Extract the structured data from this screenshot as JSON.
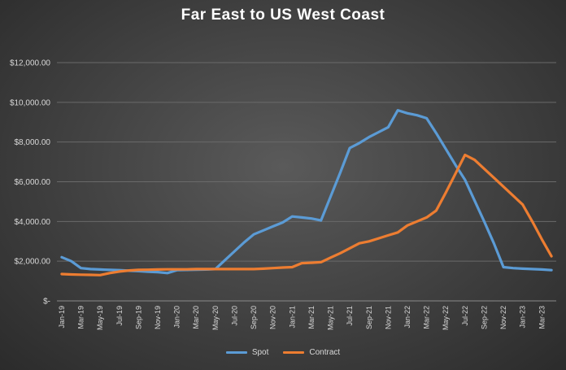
{
  "chart_data": {
    "type": "line",
    "title": "Far East to US West Coast",
    "xlabel": "",
    "ylabel": "",
    "ylim": [
      0,
      12000
    ],
    "y_ticks": [
      "$-",
      "$2,000.00",
      "$4,000.00",
      "$6,000.00",
      "$8,000.00",
      "$10,000.00",
      "$12,000.00"
    ],
    "grid": true,
    "legend_position": "bottom",
    "x_tick_labels": [
      "Jan-19",
      "Mar-19",
      "May-19",
      "Jul-19",
      "Sep-19",
      "Nov-19",
      "Jan-20",
      "Mar-20",
      "May-20",
      "Jul-20",
      "Sep-20",
      "Nov-20",
      "Jan-21",
      "Mar-21",
      "May-21",
      "Jul-21",
      "Sep-21",
      "Nov-21",
      "Jan-22",
      "Mar-22",
      "May-22",
      "Jul-22",
      "Sep-22",
      "Nov-22",
      "Jan-23",
      "Mar-23"
    ],
    "x": [
      "Jan-19",
      "Feb-19",
      "Mar-19",
      "Apr-19",
      "May-19",
      "Jun-19",
      "Jul-19",
      "Aug-19",
      "Sep-19",
      "Oct-19",
      "Nov-19",
      "Dec-19",
      "Jan-20",
      "Feb-20",
      "Mar-20",
      "Apr-20",
      "May-20",
      "Jun-20",
      "Jul-20",
      "Aug-20",
      "Sep-20",
      "Oct-20",
      "Nov-20",
      "Dec-20",
      "Jan-21",
      "Feb-21",
      "Mar-21",
      "Apr-21",
      "May-21",
      "Jun-21",
      "Jul-21",
      "Aug-21",
      "Sep-21",
      "Oct-21",
      "Nov-21",
      "Dec-21",
      "Jan-22",
      "Feb-22",
      "Mar-22",
      "Apr-22",
      "May-22",
      "Jun-22",
      "Jul-22",
      "Aug-22",
      "Sep-22",
      "Oct-22",
      "Nov-22",
      "Dec-22",
      "Jan-23",
      "Feb-23",
      "Mar-23",
      "Apr-23"
    ],
    "series": [
      {
        "name": "Spot",
        "color": "#5b9bd5",
        "values": [
          2200,
          2000,
          1650,
          1600,
          1580,
          1560,
          1550,
          1520,
          1500,
          1470,
          1450,
          1400,
          1550,
          1560,
          1570,
          1580,
          1600,
          2050,
          2500,
          2950,
          3350,
          3550,
          3750,
          3950,
          4250,
          4200,
          4150,
          4050,
          5250,
          6450,
          7700,
          7950,
          8250,
          8500,
          8750,
          9600,
          9450,
          9350,
          9200,
          8450,
          7650,
          6850,
          6100,
          5050,
          4000,
          2900,
          1700,
          1650,
          1620,
          1600,
          1580,
          1550
        ]
      },
      {
        "name": "Contract",
        "color": "#ed7d31",
        "values": [
          1350,
          1330,
          1320,
          1310,
          1300,
          1400,
          1480,
          1530,
          1560,
          1570,
          1580,
          1590,
          1590,
          1590,
          1600,
          1600,
          1600,
          1600,
          1600,
          1600,
          1600,
          1620,
          1650,
          1680,
          1700,
          1900,
          1920,
          1950,
          2180,
          2400,
          2650,
          2900,
          3000,
          3150,
          3300,
          3450,
          3800,
          4000,
          4200,
          4550,
          5450,
          6400,
          7350,
          7100,
          6650,
          6200,
          5750,
          5300,
          4850,
          4000,
          3100,
          2250
        ]
      }
    ]
  }
}
